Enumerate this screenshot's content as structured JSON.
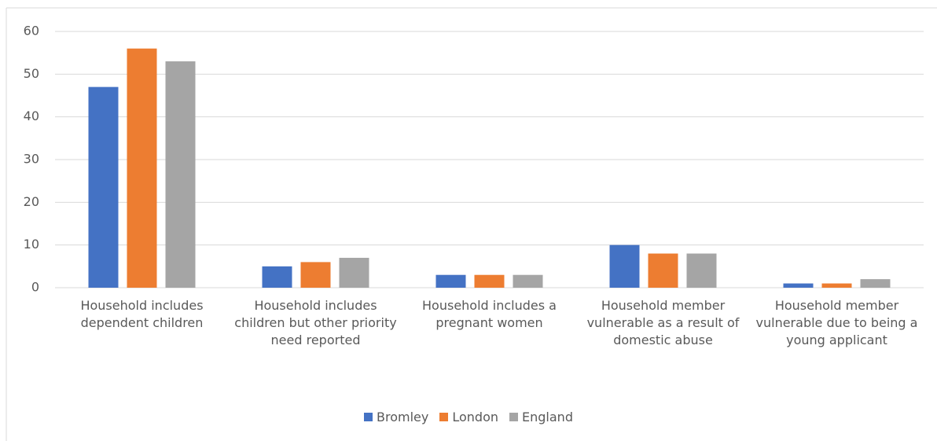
{
  "chart_data": {
    "type": "bar",
    "categories": [
      "Household includes dependent children",
      "Household includes children but other priority need reported",
      "Household includes a pregnant women",
      "Household member vulnerable as a result of domestic abuse",
      "Household member vulnerable due to being a young applicant"
    ],
    "series": [
      {
        "name": "Bromley",
        "color": "#4472c4",
        "values": [
          47,
          5,
          3,
          10,
          1
        ]
      },
      {
        "name": "London",
        "color": "#ed7d31",
        "values": [
          56,
          6,
          3,
          8,
          1
        ]
      },
      {
        "name": "England",
        "color": "#a5a5a5",
        "values": [
          53,
          7,
          3,
          8,
          2
        ]
      }
    ],
    "ylim": [
      0,
      60
    ],
    "yticks": [
      0,
      10,
      20,
      30,
      40,
      50,
      60
    ],
    "grid": true,
    "legend": "bottom"
  }
}
